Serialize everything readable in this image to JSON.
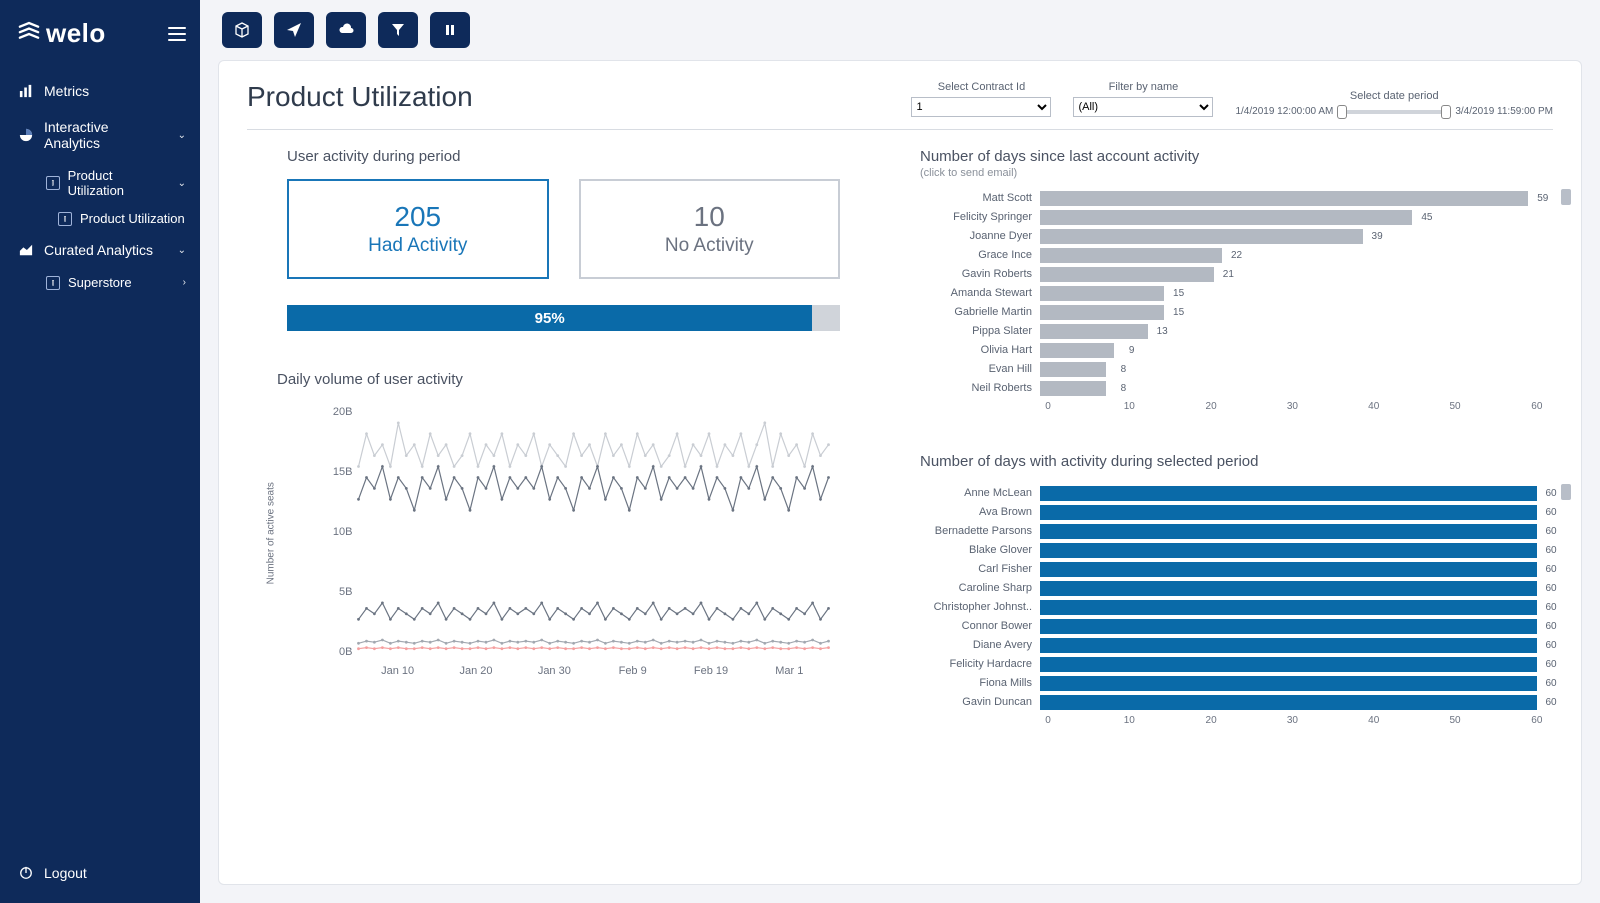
{
  "brand": {
    "name": "welo"
  },
  "sidebar": {
    "items": [
      {
        "label": "Metrics",
        "icon": "bars"
      },
      {
        "label": "Interactive Analytics",
        "icon": "pie",
        "expandable": true
      },
      {
        "label": "Curated Analytics",
        "icon": "area",
        "expandable": true
      }
    ],
    "sub_interactive": [
      {
        "label": "Product Utilization",
        "expandable": true
      }
    ],
    "sub_interactive2": [
      {
        "label": "Product Utilization"
      }
    ],
    "sub_curated": [
      {
        "label": "Superstore",
        "expandable": true
      }
    ],
    "logout": "Logout"
  },
  "toolbar_icons": [
    "cube",
    "send",
    "cloud",
    "filter",
    "pause"
  ],
  "page": {
    "title": "Product Utilization",
    "filters": {
      "contract_label": "Select Contract Id",
      "contract_value": "1",
      "name_label": "Filter by name",
      "name_value": "(All)",
      "date_label": "Select date period",
      "date_start": "1/4/2019 12:00:00 AM",
      "date_end": "3/4/2019 11:59:00 PM"
    }
  },
  "kpi": {
    "section_title": "User activity during period",
    "had_activity_value": "205",
    "had_activity_label": "Had Activity",
    "no_activity_value": "10",
    "no_activity_label": "No Activity",
    "percent": "95%",
    "percent_width": 95
  },
  "line_chart": {
    "title": "Daily volume of user activity",
    "y_label": "Number of active seats",
    "y_ticks": [
      "0B",
      "5B",
      "10B",
      "15B",
      "20B"
    ],
    "y_max": 22,
    "x_ticks": [
      "Jan 10",
      "Jan 20",
      "Jan 30",
      "Feb 9",
      "Feb 19",
      "Mar 1"
    ],
    "colors": {
      "s1": "#c9cdd3",
      "s2": "#6b7482",
      "s3": "#6b7482",
      "s4": "#a2a8b0",
      "s5": "#f5a0a0"
    },
    "series": {
      "s1": [
        17,
        20,
        18,
        19,
        17,
        21,
        18,
        19,
        17,
        20,
        18,
        19,
        17,
        18,
        20,
        17,
        19,
        18,
        20,
        17,
        19,
        18,
        20,
        17,
        19,
        18,
        17,
        20,
        18,
        19,
        17,
        20,
        18,
        19,
        17,
        20,
        18,
        19,
        17,
        18,
        20,
        17,
        19,
        18,
        20,
        17,
        19,
        18,
        20,
        17,
        19,
        21,
        17,
        20,
        18,
        19,
        17,
        20,
        18,
        19
      ],
      "s2": [
        14,
        16,
        15,
        17,
        14,
        16,
        15,
        13,
        16,
        15,
        17,
        14,
        16,
        15,
        13,
        16,
        15,
        17,
        14,
        16,
        15,
        16,
        15,
        17,
        14,
        16,
        15,
        13,
        16,
        15,
        17,
        14,
        16,
        15,
        13,
        16,
        15,
        17,
        14,
        16,
        15,
        16,
        15,
        17,
        14,
        16,
        15,
        13,
        16,
        15,
        17,
        14,
        16,
        15,
        13,
        16,
        15,
        17,
        14,
        16
      ],
      "s3": [
        3,
        4,
        3.5,
        4.5,
        3,
        4,
        3.5,
        3,
        4,
        3.5,
        4.5,
        3,
        4,
        3.5,
        3,
        4,
        3.5,
        4.5,
        3,
        4,
        3.5,
        4,
        3.5,
        4.5,
        3,
        4,
        3.5,
        3,
        4,
        3.5,
        4.5,
        3,
        4,
        3.5,
        3,
        4,
        3.5,
        4.5,
        3,
        4,
        3.5,
        4,
        3.5,
        4.5,
        3,
        4,
        3.5,
        3,
        4,
        3.5,
        4.5,
        3,
        4,
        3.5,
        3,
        4,
        3.5,
        4.5,
        3,
        4
      ],
      "s4": [
        0.8,
        1,
        0.9,
        1.1,
        0.8,
        1,
        0.9,
        0.8,
        1,
        0.9,
        1.1,
        0.8,
        1,
        0.9,
        0.8,
        1,
        0.9,
        1.1,
        0.8,
        1,
        0.9,
        1,
        0.9,
        1.1,
        0.8,
        1,
        0.9,
        0.8,
        1,
        0.9,
        1.1,
        0.8,
        1,
        0.9,
        0.8,
        1,
        0.9,
        1.1,
        0.8,
        1,
        0.9,
        1,
        0.9,
        1.1,
        0.8,
        1,
        0.9,
        0.8,
        1,
        0.9,
        1.1,
        0.8,
        1,
        0.9,
        0.8,
        1,
        0.9,
        1.1,
        0.8,
        1
      ],
      "s5": [
        0.3,
        0.4,
        0.3,
        0.4,
        0.3,
        0.4,
        0.3,
        0.3,
        0.4,
        0.3,
        0.4,
        0.3,
        0.4,
        0.3,
        0.3,
        0.4,
        0.3,
        0.4,
        0.3,
        0.4,
        0.3,
        0.4,
        0.3,
        0.4,
        0.3,
        0.4,
        0.3,
        0.3,
        0.4,
        0.3,
        0.4,
        0.3,
        0.4,
        0.3,
        0.3,
        0.4,
        0.3,
        0.4,
        0.3,
        0.4,
        0.3,
        0.4,
        0.3,
        0.4,
        0.3,
        0.4,
        0.3,
        0.3,
        0.4,
        0.3,
        0.4,
        0.3,
        0.4,
        0.3,
        0.3,
        0.4,
        0.3,
        0.4,
        0.3,
        0.4
      ]
    }
  },
  "inactivity_chart": {
    "title": "Number of days since last account activity",
    "subtitle": "(click to send email)",
    "bar_color": "#b3b9c2",
    "max": 62,
    "x_ticks": [
      0,
      10,
      20,
      30,
      40,
      50,
      60
    ],
    "rows": [
      {
        "name": "Matt Scott",
        "value": 59
      },
      {
        "name": "Felicity Springer",
        "value": 45
      },
      {
        "name": "Joanne Dyer",
        "value": 39
      },
      {
        "name": "Grace Ince",
        "value": 22
      },
      {
        "name": "Gavin Roberts",
        "value": 21
      },
      {
        "name": "Amanda Stewart",
        "value": 15
      },
      {
        "name": "Gabrielle Martin",
        "value": 15
      },
      {
        "name": "Pippa Slater",
        "value": 13
      },
      {
        "name": "Olivia Hart",
        "value": 9
      },
      {
        "name": "Evan Hill",
        "value": 8
      },
      {
        "name": "Neil Roberts",
        "value": 8
      }
    ]
  },
  "activity_chart": {
    "title": "Number of days with activity during selected period",
    "bar_color": "#0a6aa8",
    "max": 62,
    "x_ticks": [
      0,
      10,
      20,
      30,
      40,
      50,
      60
    ],
    "rows": [
      {
        "name": "Anne McLean",
        "value": 60
      },
      {
        "name": "Ava Brown",
        "value": 60
      },
      {
        "name": "Bernadette Parsons",
        "value": 60
      },
      {
        "name": "Blake Glover",
        "value": 60
      },
      {
        "name": "Carl Fisher",
        "value": 60
      },
      {
        "name": "Caroline Sharp",
        "value": 60
      },
      {
        "name": "Christopher Johnst..",
        "value": 60
      },
      {
        "name": "Connor Bower",
        "value": 60
      },
      {
        "name": "Diane Avery",
        "value": 60
      },
      {
        "name": "Felicity Hardacre",
        "value": 60
      },
      {
        "name": "Fiona Mills",
        "value": 60
      },
      {
        "name": "Gavin Duncan",
        "value": 60
      }
    ]
  }
}
